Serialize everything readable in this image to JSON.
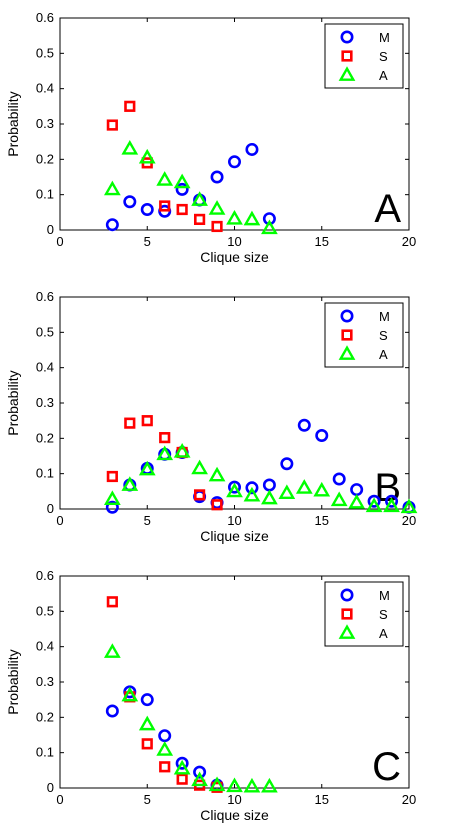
{
  "chart_data": [
    {
      "type": "scatter",
      "panel_label": "A",
      "xlabel": "Clique size",
      "ylabel": "Probability",
      "xlim": [
        0,
        20
      ],
      "ylim": [
        0,
        0.6
      ],
      "xticks": [
        "0",
        "5",
        "10",
        "15",
        "20"
      ],
      "yticks": [
        "0",
        "0.1",
        "0.2",
        "0.3",
        "0.4",
        "0.5",
        "0.6"
      ],
      "legend_position": "top-right",
      "series": [
        {
          "name": "M",
          "marker": "circle",
          "color": "#0000ff",
          "x": [
            3,
            4,
            5,
            6,
            7,
            8,
            9,
            10,
            11,
            12
          ],
          "y": [
            0.015,
            0.08,
            0.058,
            0.053,
            0.115,
            0.085,
            0.15,
            0.193,
            0.228,
            0.032
          ]
        },
        {
          "name": "S",
          "marker": "square",
          "color": "#ff0000",
          "x": [
            3,
            4,
            5,
            6,
            7,
            8,
            9
          ],
          "y": [
            0.297,
            0.35,
            0.19,
            0.068,
            0.058,
            0.03,
            0.01
          ]
        },
        {
          "name": "A",
          "marker": "triangle",
          "color": "#00ff00",
          "x": [
            3,
            4,
            5,
            6,
            7,
            8,
            9,
            10,
            11,
            12
          ],
          "y": [
            0.115,
            0.23,
            0.205,
            0.142,
            0.135,
            0.085,
            0.06,
            0.032,
            0.03,
            0.005
          ]
        }
      ]
    },
    {
      "type": "scatter",
      "panel_label": "B",
      "xlabel": "Clique size",
      "ylabel": "Probability",
      "xlim": [
        0,
        20
      ],
      "ylim": [
        0,
        0.6
      ],
      "xticks": [
        "0",
        "5",
        "10",
        "15",
        "20"
      ],
      "yticks": [
        "0",
        "0.1",
        "0.2",
        "0.3",
        "0.4",
        "0.5",
        "0.6"
      ],
      "legend_position": "top-right",
      "series": [
        {
          "name": "M",
          "marker": "circle",
          "color": "#0000ff",
          "x": [
            3,
            4,
            5,
            6,
            7,
            8,
            9,
            10,
            11,
            12,
            13,
            14,
            15,
            16,
            17,
            18,
            19,
            20
          ],
          "y": [
            0.005,
            0.068,
            0.115,
            0.155,
            0.16,
            0.035,
            0.018,
            0.062,
            0.06,
            0.068,
            0.128,
            0.237,
            0.208,
            0.085,
            0.055,
            0.022,
            0.022,
            0.005
          ]
        },
        {
          "name": "S",
          "marker": "square",
          "color": "#ff0000",
          "x": [
            3,
            4,
            5,
            6,
            7,
            8,
            9
          ],
          "y": [
            0.092,
            0.243,
            0.25,
            0.202,
            0.16,
            0.04,
            0.012
          ]
        },
        {
          "name": "A",
          "marker": "triangle",
          "color": "#00ff00",
          "x": [
            3,
            4,
            5,
            6,
            7,
            8,
            9,
            10,
            11,
            12,
            13,
            14,
            15,
            16,
            17,
            18,
            19,
            20
          ],
          "y": [
            0.028,
            0.068,
            0.112,
            0.155,
            0.162,
            0.115,
            0.095,
            0.05,
            0.038,
            0.03,
            0.045,
            0.06,
            0.052,
            0.025,
            0.018,
            0.008,
            0.008,
            0.005
          ]
        }
      ]
    },
    {
      "type": "scatter",
      "panel_label": "C",
      "xlabel": "Clique size",
      "ylabel": "Probability",
      "xlim": [
        0,
        20
      ],
      "ylim": [
        0,
        0.6
      ],
      "xticks": [
        "0",
        "5",
        "10",
        "15",
        "20"
      ],
      "yticks": [
        "0",
        "0.1",
        "0.2",
        "0.3",
        "0.4",
        "0.5",
        "0.6"
      ],
      "legend_position": "top-right",
      "series": [
        {
          "name": "M",
          "marker": "circle",
          "color": "#0000ff",
          "x": [
            3,
            4,
            5,
            6,
            7,
            8,
            9
          ],
          "y": [
            0.218,
            0.272,
            0.25,
            0.148,
            0.07,
            0.045,
            0.008
          ]
        },
        {
          "name": "S",
          "marker": "square",
          "color": "#ff0000",
          "x": [
            3,
            4,
            5,
            6,
            7,
            8,
            9
          ],
          "y": [
            0.527,
            0.258,
            0.125,
            0.06,
            0.025,
            0.008,
            0.002
          ]
        },
        {
          "name": "A",
          "marker": "triangle",
          "color": "#00ff00",
          "x": [
            3,
            4,
            5,
            6,
            7,
            8,
            9,
            10,
            11,
            12
          ],
          "y": [
            0.385,
            0.262,
            0.18,
            0.108,
            0.055,
            0.022,
            0.008,
            0.005,
            0.004,
            0.004
          ]
        }
      ]
    }
  ]
}
